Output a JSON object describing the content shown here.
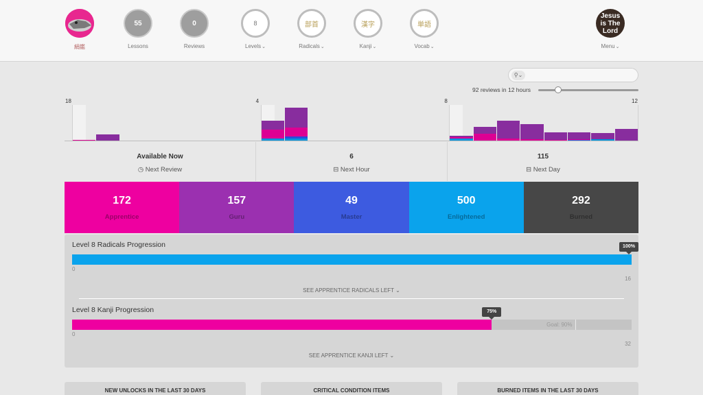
{
  "nav": {
    "user": {
      "name": "絹鑑"
    },
    "lessons": {
      "count": "55",
      "label": "Lessons"
    },
    "reviews": {
      "count": "0",
      "label": "Reviews"
    },
    "levels": {
      "value": "8",
      "label": "Levels"
    },
    "radicals": {
      "glyph": "部首",
      "label": "Radicals"
    },
    "kanji": {
      "glyph": "漢字",
      "label": "Kanji"
    },
    "vocab": {
      "glyph": "単語",
      "label": "Vocab"
    },
    "menu": {
      "avatar_text": "Jesus is The Lord",
      "label": "Menu"
    }
  },
  "search": {
    "icon": "search-icon",
    "placeholder": ""
  },
  "forecast_note": "92 reviews in 12 hours",
  "slider_value": 0.18,
  "chart_data": {
    "type": "bar",
    "stacked": true,
    "ticks": [
      {
        "label": "18",
        "x": 0
      },
      {
        "label": "4",
        "x": 4
      },
      {
        "label": "8",
        "x": 8
      },
      {
        "label": "12",
        "x": 12
      }
    ],
    "max": 18,
    "series_colors": {
      "apprentice": "#dd0093",
      "guru": "#882d9e",
      "master": "#294ddb",
      "enlightened": "#0093dd"
    },
    "bars": [
      {
        "x": 0.0,
        "apprentice": 0.3,
        "guru": 0,
        "master": 0,
        "enlightened": 0
      },
      {
        "x": 0.5,
        "apprentice": 0,
        "guru": 3.2,
        "master": 0,
        "enlightened": 0
      },
      {
        "x": 4.0,
        "apprentice": 4.5,
        "guru": 4.5,
        "master": 0,
        "enlightened": 1.2
      },
      {
        "x": 4.5,
        "apprentice": 4.5,
        "guru": 10,
        "master": 0.8,
        "enlightened": 1.2
      },
      {
        "x": 8.0,
        "apprentice": 0.8,
        "guru": 0.7,
        "master": 0,
        "enlightened": 0.9
      },
      {
        "x": 8.5,
        "apprentice": 3.5,
        "guru": 3.5,
        "master": 0,
        "enlightened": 0
      },
      {
        "x": 9.0,
        "apprentice": 1.0,
        "guru": 9.0,
        "master": 0,
        "enlightened": 0
      },
      {
        "x": 9.5,
        "apprentice": 0.8,
        "guru": 7.5,
        "master": 0,
        "enlightened": 0
      },
      {
        "x": 10.0,
        "apprentice": 0.3,
        "guru": 4.0,
        "master": 0,
        "enlightened": 0
      },
      {
        "x": 10.5,
        "apprentice": 0.3,
        "guru": 3.5,
        "master": 0.3,
        "enlightened": 0
      },
      {
        "x": 11.0,
        "apprentice": 0,
        "guru": 3.0,
        "master": 0,
        "enlightened": 0.8
      },
      {
        "x": 11.5,
        "apprentice": 0,
        "guru": 6.0,
        "master": 0,
        "enlightened": 0
      }
    ]
  },
  "forecast": [
    {
      "value": "Available Now",
      "label": "Next Review",
      "icon": "clock-icon"
    },
    {
      "value": "6",
      "label": "Next Hour",
      "icon": "inbox-icon"
    },
    {
      "value": "115",
      "label": "Next Day",
      "icon": "inbox-icon"
    }
  ],
  "srs": [
    {
      "count": "172",
      "name": "Apprentice",
      "color": "#ee00a0"
    },
    {
      "count": "157",
      "name": "Guru",
      "color": "#9b30b0"
    },
    {
      "count": "49",
      "name": "Master",
      "color": "#3d5be0"
    },
    {
      "count": "500",
      "name": "Enlightened",
      "color": "#0aa3ec"
    },
    {
      "count": "292",
      "name": "Burned",
      "color": "#474747"
    }
  ],
  "progress": {
    "radicals": {
      "title": "Level 8 Radicals Progression",
      "percent_label": "100%",
      "fraction": 1.0,
      "color": "#0aa3ec",
      "min": "0",
      "max": "16",
      "link": "SEE APPRENTICE RADICALS LEFT"
    },
    "kanji": {
      "title": "Level 8 Kanji Progression",
      "percent_label": "75%",
      "fraction": 0.75,
      "goal_fraction": 0.9,
      "goal_label": "Goal: 90%",
      "color": "#ee00a0",
      "min": "0",
      "max": "32",
      "link": "SEE APPRENTICE KANJI LEFT"
    }
  },
  "cards": [
    {
      "title": "NEW UNLOCKS IN THE LAST 30 DAYS"
    },
    {
      "title": "CRITICAL CONDITION ITEMS"
    },
    {
      "title": "BURNED ITEMS IN THE LAST 30 DAYS"
    }
  ]
}
